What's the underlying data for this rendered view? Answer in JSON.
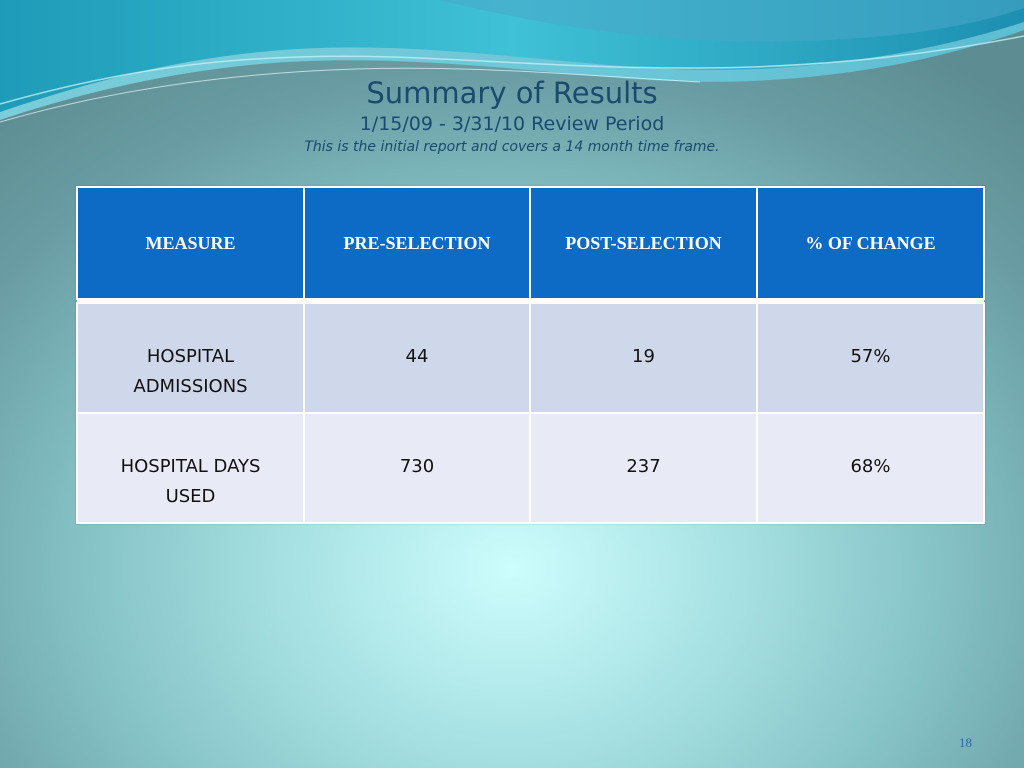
{
  "slide": {
    "title": "Summary of Results",
    "period": "1/15/09 - 3/31/10  Review Period",
    "note": "This is the initial report and covers a 14 month time frame.",
    "page_number": "18"
  },
  "table": {
    "headers": [
      "MEASURE",
      "PRE-SELECTION",
      "POST-SELECTION",
      "% OF CHANGE"
    ],
    "rows": [
      {
        "measure_line1": "HOSPITAL",
        "measure_line2": "ADMISSIONS",
        "pre": "44",
        "post": "19",
        "change": "57%"
      },
      {
        "measure_line1": "HOSPITAL DAYS",
        "measure_line2": "USED",
        "pre": "730",
        "post": "237",
        "change": "68%"
      }
    ]
  },
  "colors": {
    "header_bg": "#0e6bc5",
    "row_odd_bg": "#cfd7ea",
    "row_even_bg": "#e8ebf5",
    "title_text": "#1a4b6e"
  }
}
